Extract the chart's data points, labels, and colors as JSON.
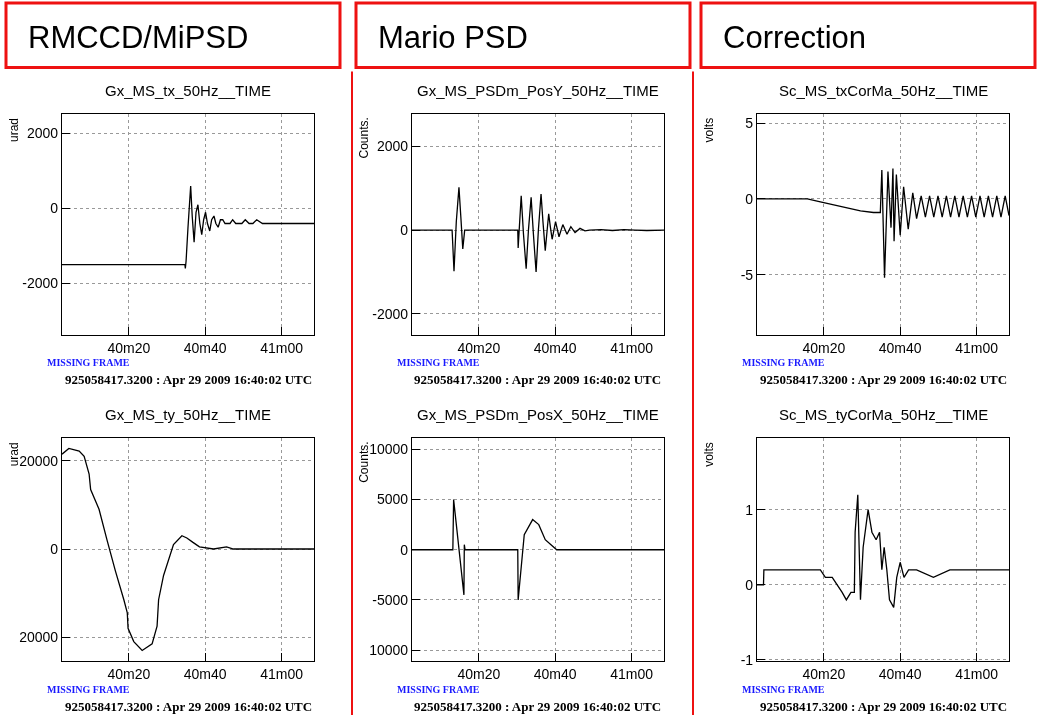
{
  "chart_data": [
    {
      "type": "line",
      "title": "Gx_MS_tx_50Hz__TIME",
      "ylabel": "urad",
      "annotations": [
        "RMCCD/MiPSD",
        "MISSING FRAME",
        "925058417.3200 : Apr 29 2009 16:40:02 UTC"
      ],
      "grid": true,
      "xlim": [
        "2009-04-29T16:40:02.5",
        "2009-04-29T16:41:08.5"
      ],
      "xticks": [
        {
          "value": "2009-04-29T16:40:20",
          "label": "40m20"
        },
        {
          "value": "2009-04-29T16:40:40",
          "label": "40m40"
        },
        {
          "value": "2009-04-29T16:41:00",
          "label": "41m00"
        }
      ],
      "ylim": [
        -3380,
        2520
      ],
      "yticks": [
        -2000,
        0,
        2000
      ],
      "x": [
        "2009-04-29T16:40:02.5",
        "2009-04-29T16:40:34.7",
        "2009-04-29T16:40:34.8",
        "2009-04-29T16:40:35.0",
        "2009-04-29T16:40:35.5",
        "2009-04-29T16:40:36.2",
        "2009-04-29T16:40:36.6",
        "2009-04-29T16:40:37.1",
        "2009-04-29T16:40:37.6",
        "2009-04-29T16:40:38.1",
        "2009-04-29T16:40:38.6",
        "2009-04-29T16:40:39.1",
        "2009-04-29T16:40:39.6",
        "2009-04-29T16:40:40.1",
        "2009-04-29T16:40:40.6",
        "2009-04-29T16:40:41.2",
        "2009-04-29T16:40:41.7",
        "2009-04-29T16:40:42.3",
        "2009-04-29T16:40:42.8",
        "2009-04-29T16:40:43.4",
        "2009-04-29T16:40:44.0",
        "2009-04-29T16:40:44.6",
        "2009-04-29T16:40:45.2",
        "2009-04-29T16:40:45.9",
        "2009-04-29T16:40:46.5",
        "2009-04-29T16:40:47.2",
        "2009-04-29T16:40:48.0",
        "2009-04-29T16:40:48.8",
        "2009-04-29T16:40:49.6",
        "2009-04-29T16:40:50.5",
        "2009-04-29T16:40:51.5",
        "2009-04-29T16:40:52.5",
        "2009-04-29T16:40:53.5",
        "2009-04-29T16:40:55",
        "2009-04-29T16:40:57",
        "2009-04-29T16:40:59",
        "2009-04-29T16:41:01",
        "2009-04-29T16:41:03",
        "2009-04-29T16:41:05",
        "2009-04-29T16:41:07",
        "2009-04-29T16:41:08.5"
      ],
      "series": [
        {
          "color": "#000000",
          "values": [
            -1500,
            -1500,
            -1600,
            -1400,
            -500,
            600,
            -200,
            -900,
            -100,
            100,
            -400,
            -700,
            -300,
            -100,
            -400,
            -600,
            -300,
            -200,
            -400,
            -500,
            -300,
            -300,
            -400,
            -400,
            -400,
            -300,
            -400,
            -400,
            -400,
            -300,
            -400,
            -400,
            -300,
            -400,
            -400,
            -400,
            -400,
            -400,
            -400,
            -400,
            -400
          ]
        }
      ]
    },
    {
      "type": "line",
      "title": "Gx_MS_PSDm_PosY_50Hz__TIME",
      "ylabel": "Counts.",
      "annotations": [
        "Mario PSD",
        "MISSING FRAME",
        "925058417.3200 : Apr 29 2009 16:40:02 UTC"
      ],
      "grid": true,
      "xlim": [
        "2009-04-29T16:40:02.5",
        "2009-04-29T16:41:08.5"
      ],
      "xticks": [
        {
          "value": "2009-04-29T16:40:20",
          "label": "40m20"
        },
        {
          "value": "2009-04-29T16:40:40",
          "label": "40m40"
        },
        {
          "value": "2009-04-29T16:41:00",
          "label": "41m00"
        }
      ],
      "ylim": [
        -2510,
        2770
      ],
      "yticks": [
        -2000,
        0,
        2000
      ],
      "x": [
        "2009-04-29T16:40:02.5",
        "2009-04-29T16:40:13.0",
        "2009-04-29T16:40:13.5",
        "2009-04-29T16:40:14.1",
        "2009-04-29T16:40:14.8",
        "2009-04-29T16:40:15.3",
        "2009-04-29T16:40:15.8",
        "2009-04-29T16:40:16.3",
        "2009-04-29T16:40:30.2",
        "2009-04-29T16:40:30.3",
        "2009-04-29T16:40:31.1",
        "2009-04-29T16:40:31.7",
        "2009-04-29T16:40:32.4",
        "2009-04-29T16:40:33.0",
        "2009-04-29T16:40:33.7",
        "2009-04-29T16:40:34.3",
        "2009-04-29T16:40:35.0",
        "2009-04-29T16:40:35.6",
        "2009-04-29T16:40:36.3",
        "2009-04-29T16:40:36.8",
        "2009-04-29T16:40:37.4",
        "2009-04-29T16:40:37.9",
        "2009-04-29T16:40:38.3",
        "2009-04-29T16:40:38.7",
        "2009-04-29T16:40:39.2",
        "2009-04-29T16:40:40.1",
        "2009-04-29T16:40:41.0",
        "2009-04-29T16:40:42.0",
        "2009-04-29T16:40:43.1",
        "2009-04-29T16:40:44.1",
        "2009-04-29T16:40:45.2",
        "2009-04-29T16:40:46.5",
        "2009-04-29T16:40:47.8",
        "2009-04-29T16:40:49",
        "2009-04-29T16:40:52",
        "2009-04-29T16:40:55",
        "2009-04-29T16:40:58",
        "2009-04-29T16:41:01",
        "2009-04-29T16:41:04",
        "2009-04-29T16:41:08.5"
      ],
      "series": [
        {
          "color": "#000000",
          "values": [
            0,
            0,
            -980,
            200,
            1020,
            300,
            -450,
            0,
            0,
            -430,
            820,
            -100,
            -920,
            0,
            780,
            -100,
            -1000,
            0,
            860,
            200,
            -490,
            0,
            390,
            100,
            -220,
            200,
            -160,
            130,
            -100,
            80,
            -60,
            40,
            -20,
            0,
            10,
            -10,
            10,
            0,
            -10,
            0
          ]
        }
      ]
    },
    {
      "type": "line",
      "title": "Sc_MS_txCorMa_50Hz__TIME",
      "ylabel": "volts",
      "annotations": [
        "Correction",
        "MISSING FRAME",
        "925058417.3200 : Apr 29 2009 16:40:02 UTC"
      ],
      "grid": true,
      "xlim": [
        "2009-04-29T16:40:02.5",
        "2009-04-29T16:41:08.5"
      ],
      "xticks": [
        {
          "value": "2009-04-29T16:40:20",
          "label": "40m20"
        },
        {
          "value": "2009-04-29T16:40:40",
          "label": "40m40"
        },
        {
          "value": "2009-04-29T16:41:00",
          "label": "41m00"
        }
      ],
      "ylim": [
        -9,
        5.6
      ],
      "yticks": [
        -5,
        0,
        5
      ],
      "x": [
        "2009-04-29T16:40:02.5",
        "2009-04-29T16:40:15.7",
        "2009-04-29T16:40:19.1",
        "2009-04-29T16:40:22.6",
        "2009-04-29T16:40:26.1",
        "2009-04-29T16:40:29.6",
        "2009-04-29T16:40:33.0",
        "2009-04-29T16:40:34.8",
        "2009-04-29T16:40:35.2",
        "2009-04-29T16:40:35.9",
        "2009-04-29T16:40:36.8",
        "2009-04-29T16:40:37.6",
        "2009-04-29T16:40:38.1",
        "2009-04-29T16:40:38.4",
        "2009-04-29T16:40:39.0",
        "2009-04-29T16:40:40.0",
        "2009-04-29T16:40:40.9",
        "2009-04-29T16:40:42.1",
        "2009-04-29T16:40:43.3",
        "2009-04-29T16:40:44.3",
        "2009-04-29T16:40:45.5",
        "2009-04-29T16:40:46.6",
        "2009-04-29T16:40:47.7",
        "2009-04-29T16:40:48.8",
        "2009-04-29T16:40:49.9",
        "2009-04-29T16:40:51.0",
        "2009-04-29T16:40:52.1",
        "2009-04-29T16:40:53.2",
        "2009-04-29T16:40:54.3",
        "2009-04-29T16:40:55.4",
        "2009-04-29T16:40:56.5",
        "2009-04-29T16:40:57.6",
        "2009-04-29T16:40:58.7",
        "2009-04-29T16:40:59.8",
        "2009-04-29T16:41:00.9",
        "2009-04-29T16:41:02.0",
        "2009-04-29T16:41:03.1",
        "2009-04-29T16:41:04.2",
        "2009-04-29T16:41:05.3",
        "2009-04-29T16:41:06.4",
        "2009-04-29T16:41:07.5",
        "2009-04-29T16:41:08.5"
      ],
      "series": [
        {
          "color": "#000000",
          "values": [
            0,
            0,
            -0.2,
            -0.4,
            -0.6,
            -0.8,
            -0.9,
            -0.9,
            1.9,
            -5.2,
            1.8,
            -1.9,
            2.0,
            -2.8,
            1.6,
            -2.4,
            0.8,
            -2.0,
            0.4,
            -1.3,
            0.2,
            -1.2,
            0.2,
            -1.2,
            0.2,
            -1.2,
            0.2,
            -1.2,
            0.2,
            -1.2,
            0.2,
            -1.2,
            0.2,
            -1.2,
            0.2,
            -1.2,
            0.2,
            -1.2,
            0.2,
            -1.2,
            0.2,
            -1.1
          ]
        }
      ]
    },
    {
      "type": "line",
      "title": "Gx_MS_ty_50Hz__TIME",
      "ylabel": "urad",
      "annotations": [
        "MISSING FRAME",
        "925058417.3200 : Apr 29 2009 16:40:02 UTC"
      ],
      "grid": true,
      "xlim": [
        "2009-04-29T16:40:02.5",
        "2009-04-29T16:41:08.5"
      ],
      "xticks": [
        {
          "value": "2009-04-29T16:40:20",
          "label": "40m20"
        },
        {
          "value": "2009-04-29T16:40:40",
          "label": "40m40"
        },
        {
          "value": "2009-04-29T16:41:00",
          "label": "41m00"
        }
      ],
      "ylim": [
        -25500,
        25100
      ],
      "yticks": [
        {
          "value": -20000,
          "label": "20000"
        },
        0,
        20000
      ],
      "x": [
        "2009-04-29T16:40:02.5",
        "2009-04-29T16:40:04.3",
        "2009-04-29T16:40:07.0",
        "2009-04-29T16:40:08.3",
        "2009-04-29T16:40:09.6",
        "2009-04-29T16:40:10.0",
        "2009-04-29T16:40:12.2",
        "2009-04-29T16:40:14.3",
        "2009-04-29T16:40:16.5",
        "2009-04-29T16:40:18.7",
        "2009-04-29T16:40:19.6",
        "2009-04-29T16:40:19.8",
        "2009-04-29T16:40:21.3",
        "2009-04-29T16:40:23.5",
        "2009-04-29T16:40:26.1",
        "2009-04-29T16:40:27.4",
        "2009-04-29T16:40:27.8",
        "2009-04-29T16:40:29.1",
        "2009-04-29T16:40:31.7",
        "2009-04-29T16:40:33.9",
        "2009-04-29T16:40:35.2",
        "2009-04-29T16:40:36.8",
        "2009-04-29T16:40:38.5",
        "2009-04-29T16:40:42.2",
        "2009-04-29T16:40:45.6",
        "2009-04-29T16:40:47.4",
        "2009-04-29T16:41:08.5"
      ],
      "series": [
        {
          "color": "#000000",
          "values": [
            21500,
            22800,
            22200,
            21000,
            17000,
            13500,
            9000,
            2000,
            -5000,
            -11500,
            -14500,
            -18000,
            -21000,
            -23000,
            -21500,
            -17500,
            -11500,
            -6000,
            1000,
            3000,
            2500,
            1500,
            500,
            0,
            500,
            0,
            0
          ]
        }
      ]
    },
    {
      "type": "line",
      "title": "Gx_MS_PSDm_PosX_50Hz__TIME",
      "ylabel": "Counts.",
      "annotations": [
        "MISSING FRAME",
        "925058417.3200 : Apr 29 2009 16:40:02 UTC"
      ],
      "grid": true,
      "xlim": [
        "2009-04-29T16:40:02.5",
        "2009-04-29T16:41:08.5"
      ],
      "xticks": [
        {
          "value": "2009-04-29T16:40:20",
          "label": "40m20"
        },
        {
          "value": "2009-04-29T16:40:40",
          "label": "40m40"
        },
        {
          "value": "2009-04-29T16:41:00",
          "label": "41m00"
        }
      ],
      "ylim": [
        -11120,
        11090
      ],
      "yticks": [
        {
          "value": -10000,
          "label": "10000"
        },
        -5000,
        0,
        5000,
        10000
      ],
      "x": [
        "2009-04-29T16:40:02.5",
        "2009-04-29T16:40:13.2",
        "2009-04-29T16:40:13.4",
        "2009-04-29T16:40:16.1",
        "2009-04-29T16:40:16.2",
        "2009-04-29T16:40:16.4",
        "2009-04-29T16:40:30.2",
        "2009-04-29T16:40:30.3",
        "2009-04-29T16:40:31.9",
        "2009-04-29T16:40:34.1",
        "2009-04-29T16:40:35.7",
        "2009-04-29T16:40:37.4",
        "2009-04-29T16:40:38.9",
        "2009-04-29T16:40:40.4",
        "2009-04-29T16:40:41.7",
        "2009-04-29T16:40:45.2",
        "2009-04-29T16:40:47.8",
        "2009-04-29T16:40:53.9",
        "2009-04-29T16:40:54.8",
        "2009-04-29T16:41:08.5"
      ],
      "series": [
        {
          "color": "#000000",
          "values": [
            0,
            0,
            5000,
            -4500,
            500,
            0,
            0,
            -5000,
            1500,
            3000,
            2500,
            1000,
            500,
            0,
            0,
            0,
            0,
            0,
            0,
            0
          ]
        }
      ]
    },
    {
      "type": "line",
      "title": "Sc_MS_tyCorMa_50Hz__TIME",
      "ylabel": "volts",
      "annotations": [
        "MISSING FRAME",
        "925058417.3200 : Apr 29 2009 16:40:02 UTC"
      ],
      "grid": true,
      "xlim": [
        "2009-04-29T16:40:02.5",
        "2009-04-29T16:41:08.5"
      ],
      "xticks": [
        {
          "value": "2009-04-29T16:40:20",
          "label": "40m20"
        },
        {
          "value": "2009-04-29T16:40:40",
          "label": "40m40"
        },
        {
          "value": "2009-04-29T16:41:00",
          "label": "41m00"
        }
      ],
      "ylim": [
        -1.02,
        1.95
      ],
      "yticks": [
        -1,
        0,
        1
      ],
      "x": [
        "2009-04-29T16:40:02.5",
        "2009-04-29T16:40:04.2",
        "2009-04-29T16:40:04.3",
        "2009-04-29T16:40:19.1",
        "2009-04-29T16:40:20.4",
        "2009-04-29T16:40:22.2",
        "2009-04-29T16:40:23.5",
        "2009-04-29T16:40:24.8",
        "2009-04-29T16:40:25.9",
        "2009-04-29T16:40:27.1",
        "2009-04-29T16:40:28.0",
        "2009-04-29T16:40:28.2",
        "2009-04-29T16:40:28.9",
        "2009-04-29T16:40:29.6",
        "2009-04-29T16:40:30.3",
        "2009-04-29T16:40:31.6",
        "2009-04-29T16:40:32.6",
        "2009-04-29T16:40:33.7",
        "2009-04-29T16:40:34.6",
        "2009-04-29T16:40:35.2",
        "2009-04-29T16:40:35.8",
        "2009-04-29T16:40:36.5",
        "2009-04-29T16:40:37.2",
        "2009-04-29T16:40:38.3",
        "2009-04-29T16:40:39.1",
        "2009-04-29T16:40:40.0",
        "2009-04-29T16:40:41.0",
        "2009-04-29T16:40:42.2",
        "2009-04-29T16:40:44.3",
        "2009-04-29T16:40:48.7",
        "2009-04-29T16:40:53.0",
        "2009-04-29T16:40:57.4",
        "2009-04-29T16:41:01.7",
        "2009-04-29T16:41:06.1",
        "2009-04-29T16:41:08.5"
      ],
      "series": [
        {
          "color": "#000000",
          "values": [
            0.0,
            0.0,
            0.2,
            0.2,
            0.1,
            0.1,
            0.0,
            -0.1,
            -0.2,
            -0.1,
            -0.1,
            0.7,
            1.2,
            -0.2,
            0.5,
            1.0,
            0.7,
            0.6,
            0.7,
            0.2,
            0.5,
            0.2,
            -0.2,
            -0.3,
            0.1,
            0.3,
            0.1,
            0.2,
            0.2,
            0.1,
            0.2,
            0.2,
            0.2,
            0.2,
            0.2
          ]
        }
      ]
    }
  ]
}
